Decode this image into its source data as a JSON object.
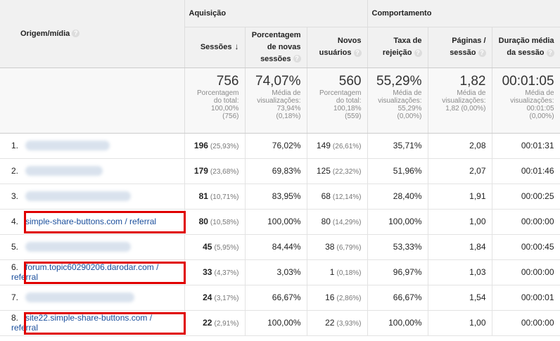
{
  "headers": {
    "origem": "Origem/mídia",
    "aquisicao": "Aquisição",
    "comportamento": "Comportamento",
    "sessoes": "Sessões",
    "porc_novas_l1": "Porcentagem",
    "porc_novas_l2": "de novas",
    "porc_novas_l3": "sessões",
    "novos_l1": "Novos",
    "novos_l2": "usuários",
    "taxa_l1": "Taxa de",
    "taxa_l2": "rejeição",
    "paginas_l1": "Páginas /",
    "paginas_l2": "sessão",
    "duracao_l1": "Duração média",
    "duracao_l2": "da sessão",
    "help_glyph": "?",
    "sort_glyph": "↓"
  },
  "totals": {
    "sessoes": {
      "value": "756",
      "l1": "Porcentagem",
      "l2": "do total:",
      "l3": "100,00%",
      "l4": "(756)"
    },
    "porc_novas": {
      "value": "74,07%",
      "l1": "Média de",
      "l2": "visualizações:",
      "l3": "73,94%",
      "l4": "(0,18%)"
    },
    "novos": {
      "value": "560",
      "l1": "Porcentagem",
      "l2": "do total:",
      "l3": "100,18%",
      "l4": "(559)"
    },
    "taxa": {
      "value": "55,29%",
      "l1": "Média de",
      "l2": "visualizações:",
      "l3": "55,29%",
      "l4": "(0,00%)"
    },
    "paginas": {
      "value": "1,82",
      "l1": "Média de",
      "l2": "visualizações:",
      "l3": "1,82 (0,00%)",
      "l4": ""
    },
    "duracao": {
      "value": "00:01:05",
      "l1": "Média de",
      "l2": "visualizações:",
      "l3": "00:01:05",
      "l4": "(0,00%)"
    }
  },
  "rows": [
    {
      "n": "1.",
      "origin_l1": "",
      "origin_l2": "",
      "sessoes": "196",
      "sessoes_pct": "(25,93%)",
      "porc_novas": "76,02%",
      "novos": "149",
      "novos_pct": "(26,61%)",
      "taxa": "35,71%",
      "paginas": "2,08",
      "duracao": "00:01:31"
    },
    {
      "n": "2.",
      "origin_l1": "",
      "origin_l2": "",
      "sessoes": "179",
      "sessoes_pct": "(23,68%)",
      "porc_novas": "69,83%",
      "novos": "125",
      "novos_pct": "(22,32%)",
      "taxa": "51,96%",
      "paginas": "2,07",
      "duracao": "00:01:46"
    },
    {
      "n": "3.",
      "origin_l1": "",
      "origin_l2": "",
      "sessoes": "81",
      "sessoes_pct": "(10,71%)",
      "porc_novas": "83,95%",
      "novos": "68",
      "novos_pct": "(12,14%)",
      "taxa": "28,40%",
      "paginas": "1,91",
      "duracao": "00:00:25"
    },
    {
      "n": "4.",
      "origin_l1": "simple-share-buttons.com / referral",
      "origin_l2": "",
      "sessoes": "80",
      "sessoes_pct": "(10,58%)",
      "porc_novas": "100,00%",
      "novos": "80",
      "novos_pct": "(14,29%)",
      "taxa": "100,00%",
      "paginas": "1,00",
      "duracao": "00:00:00"
    },
    {
      "n": "5.",
      "origin_l1": "",
      "origin_l2": "",
      "sessoes": "45",
      "sessoes_pct": "(5,95%)",
      "porc_novas": "84,44%",
      "novos": "38",
      "novos_pct": "(6,79%)",
      "taxa": "53,33%",
      "paginas": "1,84",
      "duracao": "00:00:45"
    },
    {
      "n": "6.",
      "origin_l1": "forum.topic60290206.darodar.com /",
      "origin_l2": "referral",
      "sessoes": "33",
      "sessoes_pct": "(4,37%)",
      "porc_novas": "3,03%",
      "novos": "1",
      "novos_pct": "(0,18%)",
      "taxa": "96,97%",
      "paginas": "1,03",
      "duracao": "00:00:00"
    },
    {
      "n": "7.",
      "origin_l1": "",
      "origin_l2": "",
      "sessoes": "24",
      "sessoes_pct": "(3,17%)",
      "porc_novas": "66,67%",
      "novos": "16",
      "novos_pct": "(2,86%)",
      "taxa": "66,67%",
      "paginas": "1,54",
      "duracao": "00:00:01"
    },
    {
      "n": "8.",
      "origin_l1": "site22.simple-share-buttons.com /",
      "origin_l2": "referral",
      "sessoes": "22",
      "sessoes_pct": "(2,91%)",
      "porc_novas": "100,00%",
      "novos": "22",
      "novos_pct": "(3,93%)",
      "taxa": "100,00%",
      "paginas": "1,00",
      "duracao": "00:00:00"
    }
  ],
  "colors": {
    "highlight": "#e00000",
    "link": "#1a4e9c",
    "header_bg": "#f1f1f1"
  }
}
